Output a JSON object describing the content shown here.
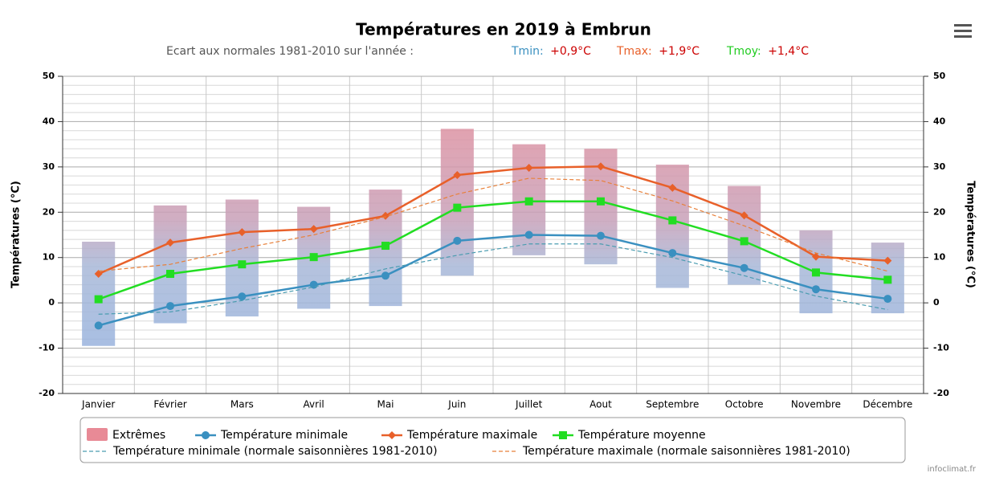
{
  "chart_data": {
    "type": "line",
    "title": "Températures en 2019 à Embrun",
    "subtitle": "Ecart aux normales 1981-2010 sur l'année :",
    "annotations": [
      {
        "label": "Tmin:",
        "value": "+0,9°C",
        "color": "#3a90c0"
      },
      {
        "label": "Tmax:",
        "value": "+1,9°C",
        "color": "#e8602a"
      },
      {
        "label": "Tmoy:",
        "value": "+1,4°C",
        "color": "#22cc22"
      }
    ],
    "credit": "infoclimat.fr",
    "ylabel": "Températures (°C)",
    "y2label": "Températures (°C)",
    "categories": [
      "Janvier",
      "Février",
      "Mars",
      "Avril",
      "Mai",
      "Juin",
      "Juillet",
      "Aout",
      "Septembre",
      "Octobre",
      "Novembre",
      "Décembre"
    ],
    "ylim": [
      -20,
      50
    ],
    "yticks": [
      -20,
      -10,
      0,
      10,
      20,
      30,
      40,
      50
    ],
    "y2lim": [
      -20,
      50
    ],
    "y2ticks": [
      -20,
      -10,
      0,
      10,
      20,
      30,
      40,
      50
    ],
    "grid": true,
    "series": [
      {
        "name": "Extrêmes",
        "type": "range",
        "color": "#e88a96",
        "low": [
          -9.5,
          -4.5,
          -3,
          -1.3,
          -0.7,
          6,
          10.5,
          8.5,
          3.3,
          4,
          -2.3,
          -2.3
        ],
        "high": [
          13.5,
          21.5,
          22.8,
          21.2,
          25,
          38.4,
          35,
          34,
          30.5,
          25.8,
          16,
          13.3
        ]
      },
      {
        "name": "Température minimale",
        "type": "line",
        "marker": "circle",
        "color": "#3a90c0",
        "values": [
          -5,
          -0.7,
          1.4,
          4,
          6,
          13.7,
          15,
          14.8,
          11,
          7.7,
          3,
          0.9
        ]
      },
      {
        "name": "Température maximale",
        "type": "line",
        "marker": "diamond",
        "color": "#e8602a",
        "values": [
          6.4,
          13.3,
          15.6,
          16.3,
          19.2,
          28.2,
          29.8,
          30.1,
          25.4,
          19.3,
          10.2,
          9.3
        ]
      },
      {
        "name": "Température moyenne",
        "type": "line",
        "marker": "square",
        "color": "#22dd22",
        "values": [
          0.8,
          6.4,
          8.5,
          10.1,
          12.6,
          21,
          22.4,
          22.4,
          18.2,
          13.6,
          6.7,
          5.1
        ]
      },
      {
        "name": "Température minimale (normale saisonnières 1981-2010)",
        "type": "line",
        "dash": true,
        "color": "#4a9cb0",
        "values": [
          -2.5,
          -2,
          0.5,
          3.5,
          7.5,
          10.5,
          13,
          13,
          10,
          6,
          1.5,
          -1.5
        ]
      },
      {
        "name": "Température maximale (normale saisonnières 1981-2010)",
        "type": "line",
        "dash": true,
        "color": "#e8803a",
        "values": [
          7,
          8.5,
          12,
          15,
          19,
          24,
          27.5,
          27,
          22.5,
          17,
          11,
          7
        ]
      }
    ]
  }
}
